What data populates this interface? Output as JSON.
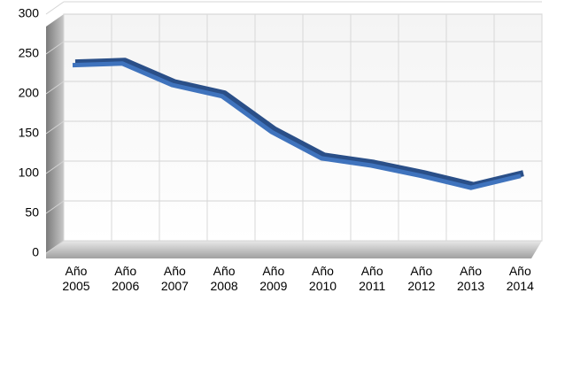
{
  "chart_data": {
    "type": "line",
    "categories": [
      "Año 2005",
      "Año 2006",
      "Año 2007",
      "Año 2008",
      "Año 2009",
      "Año 2010",
      "Año 2011",
      "Año 2012",
      "Año 2013",
      "Año 2014"
    ],
    "series": [
      {
        "color": "#3f73bd",
        "values": [
          236,
          238,
          211,
          197,
          152,
          119,
          110,
          97,
          82,
          97
        ]
      }
    ],
    "ylim": [
      0,
      300
    ],
    "yticks": [
      0,
      50,
      100,
      150,
      200,
      250,
      300
    ],
    "grid": true
  }
}
